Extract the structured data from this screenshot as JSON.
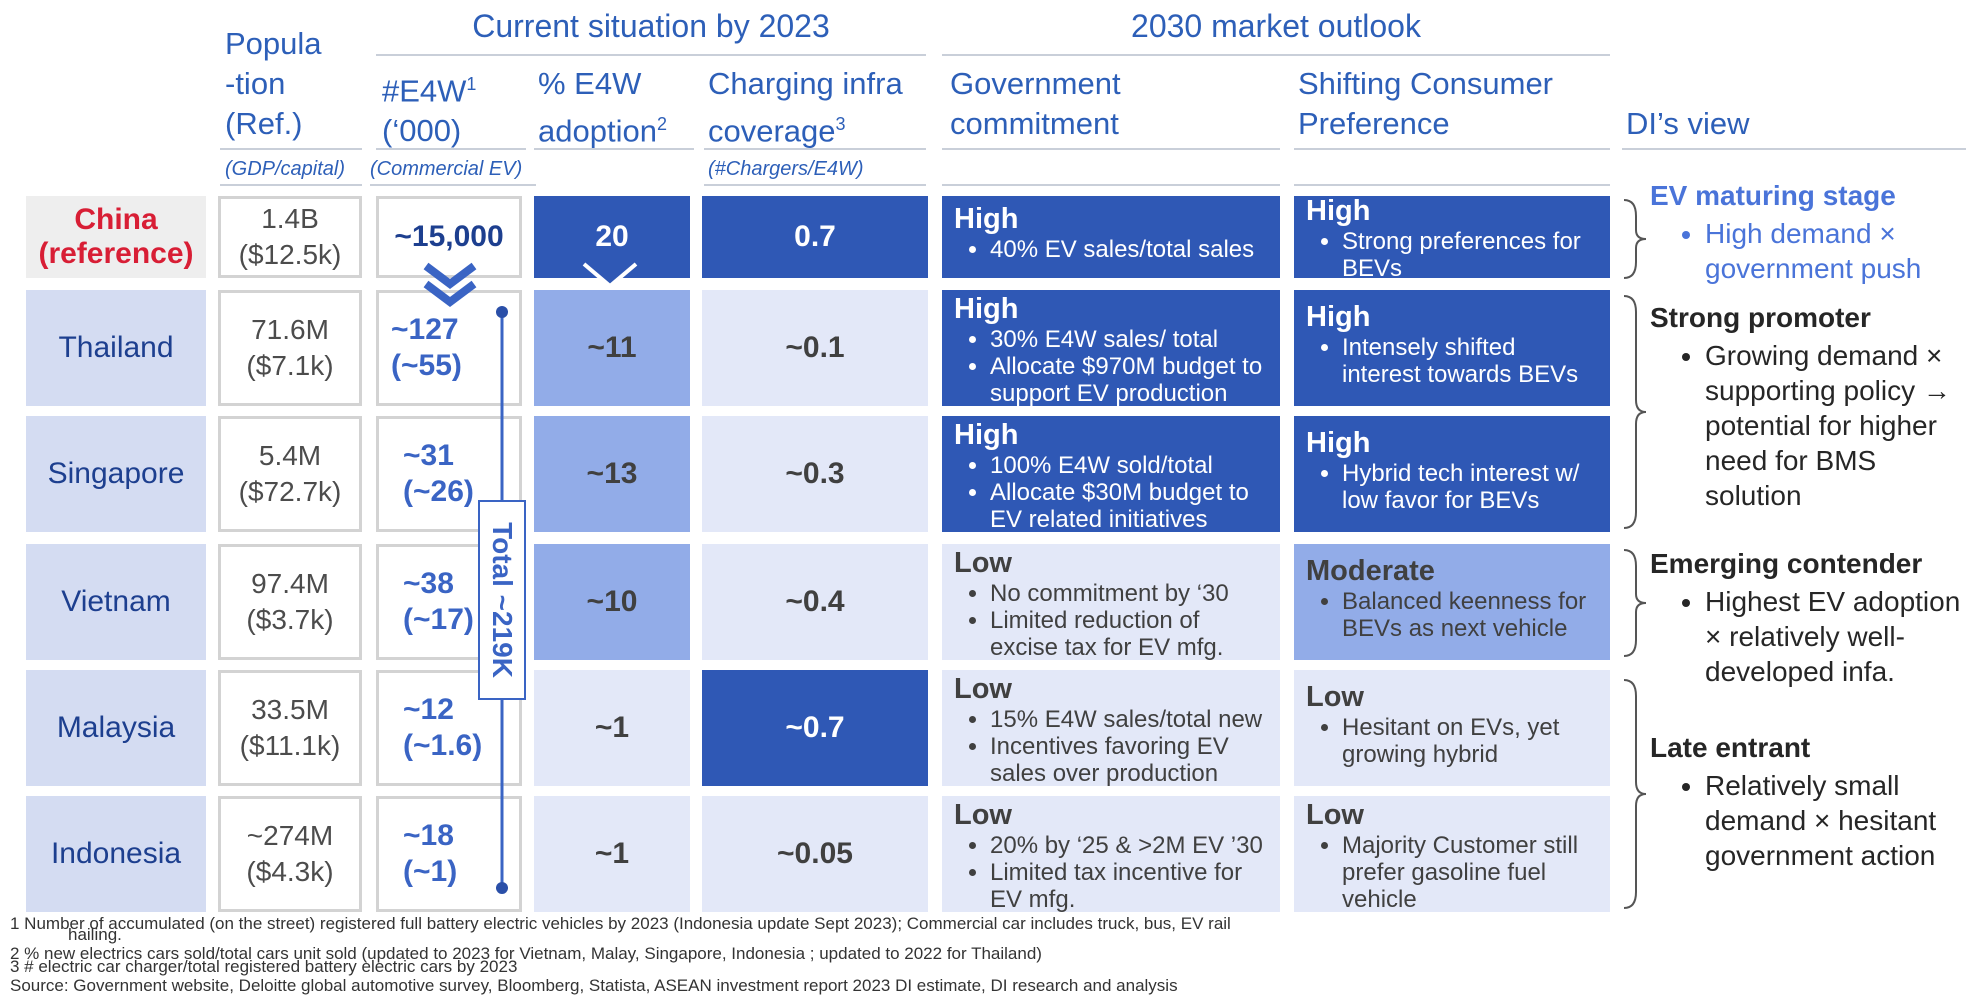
{
  "chart_data": {
    "type": "table",
    "group_headers": {
      "current": "Current situation by 2023",
      "outlook": "2030 market outlook"
    },
    "columns": {
      "population": {
        "l1": "Popula",
        "l2": "-tion",
        "l3": "(Ref.)",
        "sub": "(GDP/capital)"
      },
      "e4w": {
        "l1": "#E4W",
        "sup": "1",
        "l2": "(‘000)",
        "sub": "(Commercial EV)"
      },
      "adoption": {
        "l1": "% E4W",
        "l2": "adoption",
        "sup": "2"
      },
      "charging": {
        "l1": "Charging infra",
        "l2": "coverage",
        "sup": "3",
        "sub": "(#Chargers/E4W)"
      },
      "gov": {
        "l1": "Government",
        "l2": "commitment"
      },
      "consumer": {
        "l1": "Shifting Consumer",
        "l2": "Preference"
      },
      "di": {
        "l1": "DI’s view"
      }
    },
    "rows": [
      {
        "country_l1": "China",
        "country_l2": "(reference)",
        "pop": "1.4B",
        "gdp": "($12.5k)",
        "e4w": "~15,000",
        "e4w_com": "",
        "adoption": "20",
        "charging": "0.7",
        "gov_level": "High",
        "gov_points": [
          "40% EV sales/total sales"
        ],
        "con_level": "High",
        "con_points": [
          "Strong preferences for BEVs"
        ]
      },
      {
        "country_l1": "Thailand",
        "country_l2": "",
        "pop": "71.6M",
        "gdp": "($7.1k)",
        "e4w": "~127",
        "e4w_com": "(~55)",
        "adoption": "~11",
        "charging": "~0.1",
        "gov_level": "High",
        "gov_points": [
          "30% E4W sales/ total",
          "Allocate $970M budget to support EV production"
        ],
        "con_level": "High",
        "con_points": [
          "Intensely shifted interest towards BEVs"
        ]
      },
      {
        "country_l1": "Singapore",
        "country_l2": "",
        "pop": "5.4M",
        "gdp": "($72.7k)",
        "e4w": "~31",
        "e4w_com": "(~26)",
        "adoption": "~13",
        "charging": "~0.3",
        "gov_level": "High",
        "gov_points": [
          "100% E4W sold/total",
          "Allocate $30M budget to EV related initiatives"
        ],
        "con_level": "High",
        "con_points": [
          "Hybrid tech interest w/ low favor for BEVs"
        ]
      },
      {
        "country_l1": "Vietnam",
        "country_l2": "",
        "pop": "97.4M",
        "gdp": "($3.7k)",
        "e4w": "~38",
        "e4w_com": "(~17)",
        "adoption": "~10",
        "charging": "~0.4",
        "gov_level": "Low",
        "gov_points": [
          "No commitment by ‘30",
          "Limited reduction of excise tax for EV mfg."
        ],
        "con_level": "Moderate",
        "con_points": [
          "Balanced keenness for BEVs as next vehicle"
        ]
      },
      {
        "country_l1": "Malaysia",
        "country_l2": "",
        "pop": "33.5M",
        "gdp": "($11.1k)",
        "e4w": "~12",
        "e4w_com": "(~1.6)",
        "adoption": "~1",
        "charging": "~0.7",
        "gov_level": "Low",
        "gov_points": [
          "15% E4W sales/total new",
          "Incentives favoring EV sales over production"
        ],
        "con_level": "Low",
        "con_points": [
          "Hesitant on EVs, yet growing hybrid"
        ]
      },
      {
        "country_l1": "Indonesia",
        "country_l2": "",
        "pop": "~274M",
        "gdp": "($4.3k)",
        "e4w": "~18",
        "e4w_com": "(~1)",
        "adoption": "~1",
        "charging": "~0.05",
        "gov_level": "Low",
        "gov_points": [
          "20% by ‘25 & >2M EV ’30",
          "Limited tax incentive for EV mfg."
        ],
        "con_level": "Low",
        "con_points": [
          "Majority Customer still prefer gasoline fuel vehicle"
        ]
      }
    ],
    "total_label": "Total ~219K",
    "di_view": [
      {
        "title": "EV maturing stage",
        "points": [
          "High demand × government push"
        ]
      },
      {
        "title": "Strong promoter",
        "points": [
          "Growing demand × supporting policy → potential for higher need for BMS solution"
        ]
      },
      {
        "title": "Emerging contender",
        "points": [
          "Highest EV adoption × relatively well-developed infa."
        ]
      },
      {
        "title": "Late entrant",
        "points": [
          "Relatively small demand × hesitant government action"
        ]
      }
    ],
    "footnotes": [
      "1 Number of accumulated (on the street) registered full battery electric vehicles by 2023 (Indonesia update Sept 2023); Commercial car includes truck, bus, EV rail",
      "hailing.",
      "2 % new electrics cars sold/total cars unit sold (updated to 2023 for Vietnam, Malay, Singapore, Indonesia ; updated to 2022 for Thailand)",
      "3 # electric car charger/total registered battery electric cars by 2023",
      "Source: Government website, Deloitte global automotive survey, Bloomberg, Statista, ASEAN investment report 2023 DI estimate, DI research and analysis"
    ],
    "colors": {
      "dark": "#2f58b5",
      "mid": "#92ace8",
      "light": "#e3e8f8",
      "china_red": "#d81e35",
      "header_blue": "#2d5fb8"
    }
  }
}
